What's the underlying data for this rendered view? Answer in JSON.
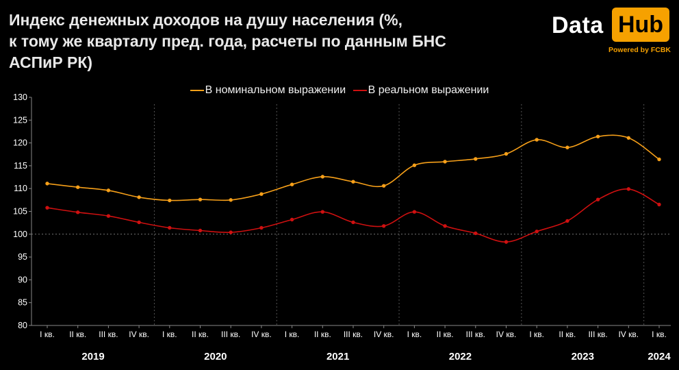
{
  "title": "Индекс денежных доходов на душу населения (%,\nк тому же кварталу пред. года, расчеты по данным БНС\nАСПиР РК)",
  "logo": {
    "data": "Data",
    "hub": "Hub",
    "powered": "Powered by FCBK"
  },
  "colors": {
    "nominal": "#f7a019",
    "real": "#cf1010",
    "grid": "#555555",
    "axis_text": "#ffffff"
  },
  "chart_data": {
    "type": "line",
    "categories": [
      "I кв.",
      "II кв.",
      "III кв.",
      "IV кв.",
      "I кв.",
      "II кв.",
      "III кв.",
      "IV кв.",
      "I кв.",
      "II кв.",
      "III кв.",
      "IV кв.",
      "I кв.",
      "II кв.",
      "III кв.",
      "IV кв.",
      "I кв.",
      "II кв.",
      "III кв.",
      "IV кв.",
      "I кв."
    ],
    "years": [
      "2019",
      "2020",
      "2021",
      "2022",
      "2023",
      "2024"
    ],
    "year_spans": [
      [
        0,
        3
      ],
      [
        4,
        7
      ],
      [
        8,
        11
      ],
      [
        12,
        15
      ],
      [
        16,
        19
      ],
      [
        20,
        20
      ]
    ],
    "series": [
      {
        "name": "В номинальном выражении",
        "color": "#f7a019",
        "values": [
          111.1,
          110.3,
          109.6,
          108.1,
          107.4,
          107.6,
          107.5,
          108.8,
          110.9,
          112.6,
          111.5,
          110.6,
          115.1,
          115.9,
          116.5,
          117.6,
          120.7,
          119.0,
          121.4,
          121.1,
          116.4
        ]
      },
      {
        "name": "В реальном выражении",
        "color": "#cf1010",
        "values": [
          105.8,
          104.8,
          104.0,
          102.6,
          101.4,
          100.8,
          100.4,
          101.4,
          103.2,
          104.9,
          102.6,
          101.8,
          104.9,
          101.8,
          100.2,
          98.3,
          100.6,
          102.9,
          107.6,
          109.9,
          106.5
        ]
      }
    ],
    "ylim": [
      80,
      130
    ],
    "yticks": [
      80,
      85,
      90,
      95,
      100,
      105,
      110,
      115,
      120,
      125,
      130
    ],
    "reference_line": 100,
    "legend_position": "top-center",
    "grid": false
  }
}
